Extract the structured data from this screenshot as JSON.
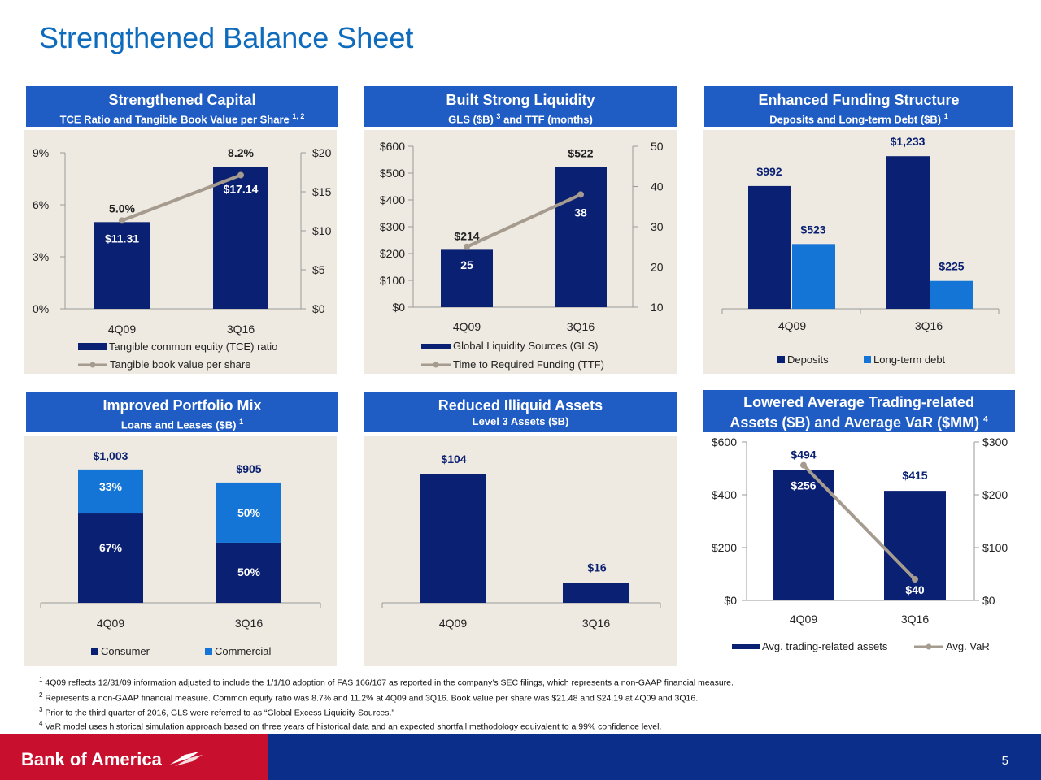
{
  "page": {
    "title": "Strengthened Balance Sheet",
    "page_number": "5",
    "logo_text": "Bank of America"
  },
  "panels": [
    {
      "title": "Strengthened Capital",
      "subtitle": "TCE Ratio and Tangible Book Value per Share",
      "subtitle_sup": "1, 2"
    },
    {
      "title": "Built Strong Liquidity",
      "subtitle_pre": "GLS ($B)",
      "subtitle_sup": "3",
      "subtitle_post": "and TTF (months)"
    },
    {
      "title": "Enhanced Funding Structure",
      "subtitle": "Deposits and Long-term Debt ($B)",
      "subtitle_sup": "1"
    },
    {
      "title": "Improved Portfolio Mix",
      "subtitle": "Loans and Leases ($B)",
      "subtitle_sup": "1"
    },
    {
      "title": "Reduced Illiquid Assets",
      "subtitle": "Level 3 Assets ($B)"
    },
    {
      "title": "Lowered Average Trading-related",
      "subtitle": "Assets ($B) and Average VaR ($MM)",
      "subtitle_sup": "4"
    }
  ],
  "chart_data": [
    {
      "type": "bar",
      "categories": [
        "4Q09",
        "3Q16"
      ],
      "series": [
        {
          "name": "Tangible common equity (TCE) ratio",
          "type": "bar",
          "axis": "left",
          "values": [
            5.0,
            8.2
          ],
          "labels": [
            "5.0%",
            "8.2%"
          ]
        },
        {
          "name": "Tangible book value per share",
          "type": "line",
          "axis": "right",
          "values": [
            11.31,
            17.14
          ],
          "labels": [
            "$11.31",
            "$17.14"
          ]
        }
      ],
      "y_left": {
        "ticks": [
          "0%",
          "3%",
          "6%",
          "9%"
        ],
        "range": [
          0,
          9
        ]
      },
      "y_right": {
        "ticks": [
          "$0",
          "$5",
          "$10",
          "$15",
          "$20"
        ],
        "range": [
          0,
          20
        ]
      },
      "colors": {
        "bar": "#0a2072",
        "line": "#a59b8f"
      }
    },
    {
      "type": "bar",
      "categories": [
        "4Q09",
        "3Q16"
      ],
      "series": [
        {
          "name": "Global Liquidity Sources (GLS)",
          "type": "bar",
          "axis": "left",
          "values": [
            214,
            522
          ],
          "labels": [
            "$214",
            "$522"
          ]
        },
        {
          "name": "Time to Required Funding (TTF)",
          "type": "line",
          "axis": "right",
          "values": [
            25,
            38
          ],
          "labels": [
            "25",
            "38"
          ]
        }
      ],
      "y_left": {
        "ticks": [
          "$0",
          "$100",
          "$200",
          "$300",
          "$400",
          "$500",
          "$600"
        ],
        "range": [
          0,
          600
        ]
      },
      "y_right": {
        "ticks": [
          "10",
          "20",
          "30",
          "40",
          "50"
        ],
        "range": [
          10,
          50
        ]
      },
      "colors": {
        "bar": "#0a2072",
        "line": "#a59b8f"
      }
    },
    {
      "type": "bar",
      "categories": [
        "4Q09",
        "3Q16"
      ],
      "series": [
        {
          "name": "Deposits",
          "values": [
            992,
            1233
          ],
          "labels": [
            "$992",
            "$1,233"
          ]
        },
        {
          "name": "Long-term debt",
          "values": [
            523,
            225
          ],
          "labels": [
            "$523",
            "$225"
          ]
        }
      ],
      "y_range": [
        0,
        1300
      ],
      "colors": {
        "deposits": "#0a2072",
        "ltd": "#1475d6"
      }
    },
    {
      "type": "bar",
      "stacked": true,
      "categories": [
        "4Q09",
        "3Q16"
      ],
      "totals": [
        "$1,003",
        "$905"
      ],
      "total_values": [
        1003,
        905
      ],
      "series": [
        {
          "name": "Consumer",
          "shares": [
            67,
            50
          ],
          "labels": [
            "67%",
            "50%"
          ]
        },
        {
          "name": "Commercial",
          "shares": [
            33,
            50
          ],
          "labels": [
            "33%",
            "50%"
          ]
        }
      ],
      "y_range": [
        0,
        1100
      ],
      "colors": {
        "consumer": "#0a2072",
        "commercial": "#1475d6"
      }
    },
    {
      "type": "bar",
      "categories": [
        "4Q09",
        "3Q16"
      ],
      "values": [
        104,
        16
      ],
      "labels": [
        "$104",
        "$16"
      ],
      "y_range": [
        0,
        125
      ],
      "colors": {
        "bar": "#0a2072"
      }
    },
    {
      "type": "bar",
      "categories": [
        "4Q09",
        "3Q16"
      ],
      "series": [
        {
          "name": "Avg. trading-related assets",
          "type": "bar",
          "axis": "left",
          "values": [
            494,
            415
          ],
          "labels": [
            "$494",
            "$415"
          ]
        },
        {
          "name": "Avg. VaR",
          "type": "line",
          "axis": "right",
          "values": [
            256,
            40
          ],
          "labels": [
            "$256",
            "$40"
          ]
        }
      ],
      "y_left": {
        "ticks": [
          "$0",
          "$200",
          "$400",
          "$600"
        ],
        "range": [
          0,
          600
        ]
      },
      "y_right": {
        "ticks": [
          "$0",
          "$100",
          "$200",
          "$300"
        ],
        "range": [
          0,
          300
        ]
      },
      "colors": {
        "bar": "#0a2072",
        "line": "#a59b8f"
      }
    }
  ],
  "footnotes": [
    {
      "num": "1",
      "text": "4Q09 reflects 12/31/09 information adjusted to include the 1/1/10 adoption of FAS 166/167 as reported in the company’s SEC filings, which represents a non-GAAP financial measure."
    },
    {
      "num": "2",
      "text": "Represents a non-GAAP financial measure. Common equity ratio was 8.7% and 11.2% at 4Q09 and 3Q16. Book value per share was $21.48 and $24.19 at 4Q09 and 3Q16."
    },
    {
      "num": "3",
      "text": "Prior to the third quarter of 2016, GLS were referred to as “Global Excess Liquidity Sources.”"
    },
    {
      "num": "4",
      "text": "VaR model uses historical simulation approach based on three years of historical data and an expected shortfall methodology equivalent to a 99% confidence level."
    }
  ]
}
